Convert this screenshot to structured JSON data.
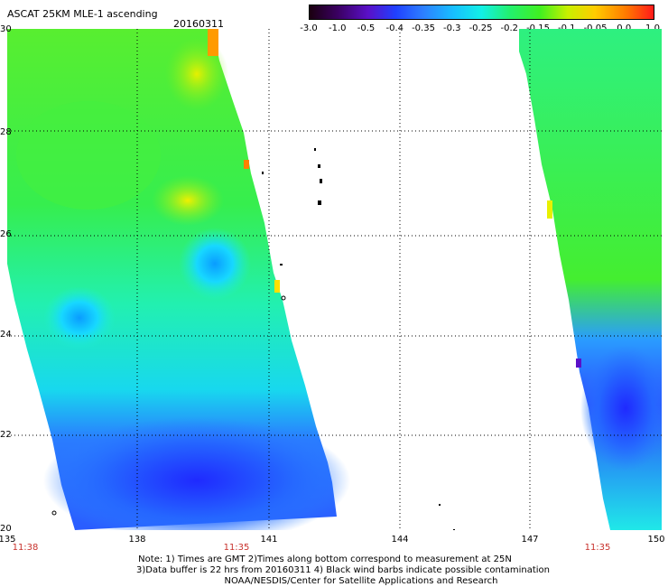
{
  "header": {
    "title": "ASCAT 25KM MLE-1 ascending",
    "date": "20160311"
  },
  "colorbar": {
    "labels": [
      "-3.0",
      "-1.0",
      "-0.5",
      "-0.4",
      "-0.35",
      "-0.3",
      "-0.25",
      "-0.2",
      "-0.15",
      "-0.1",
      "-0.05",
      "0.0",
      "1.0"
    ],
    "colors": [
      "#1a0010",
      "#3a0060",
      "#5a10c8",
      "#2040ff",
      "#2d7fff",
      "#17c0ff",
      "#12f0e6",
      "#22f070",
      "#40f020",
      "#c8f000",
      "#ffcc00",
      "#ff7a00",
      "#ff1a1a"
    ]
  },
  "map": {
    "lat_labels": [
      "30",
      "28",
      "26",
      "24",
      "22",
      "20"
    ],
    "lon_labels": [
      "135",
      "138",
      "141",
      "144",
      "147",
      "150"
    ],
    "pass_times": [
      "11:38",
      "11:35",
      "11:35"
    ]
  },
  "notes": {
    "line1": "Note: 1) Times are GMT 2)Times along bottom correspond to measurement at 25N",
    "line2": "3)Data buffer is 22 hrs from 20160311 4) Black wind barbs indicate possible contamination",
    "line3": "NOAA/NESDIS/Center for Satellite Applications and Research"
  }
}
